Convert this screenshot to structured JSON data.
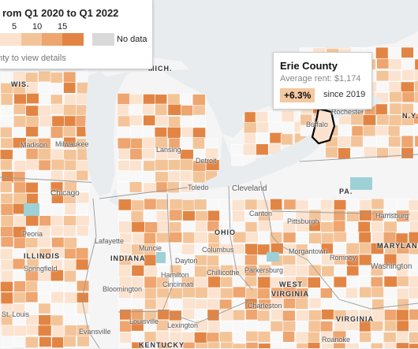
{
  "legend": {
    "title": "rom Q1 2020 to Q1 2022",
    "ticks": [
      "5",
      "10",
      "15"
    ],
    "colors": [
      "#fbe3cf",
      "#f4c499",
      "#eea56f",
      "#e28544"
    ],
    "no_data_label": "No data",
    "no_data_color": "#d9d9d9",
    "hint": "nty to view details"
  },
  "tooltip": {
    "county": "Erie County",
    "average_rent": "Average rent: $1,174",
    "change": "+6.3%",
    "since": "since 2019"
  },
  "colors": {
    "land": "#f5f5f5",
    "water": "#e9ecee",
    "lake": "#9ed1d6",
    "selected_outline": "#000000"
  },
  "cities": {
    "madison": "Madison",
    "milwaukee": "Milwaukee",
    "chicago": "Chicago",
    "peoria": "Peoria",
    "springfield": "Springfield",
    "st_louis": "St. Louis",
    "lansing": "Lansing",
    "detroit": "Detroit",
    "toledo": "Toledo",
    "cleveland": "Cleveland",
    "canton": "Canton",
    "pittsburgh": "Pittsburgh",
    "morgantown": "Morgantown",
    "romney": "Romney",
    "columbus": "Columbus",
    "dayton": "Dayton",
    "hamilton": "Hamilton",
    "cincinnati": "Cincinnati",
    "chillicothe": "Chillicothe",
    "parkersburg": "Parkersburg",
    "charleston": "Charleston",
    "lafayette": "Lafayette",
    "muncie": "Muncie",
    "bloomington": "Bloomington",
    "louisville": "Louisville",
    "lexington": "Lexington",
    "evansville": "Evansville",
    "harrisburg": "Harrisburg",
    "washington": "Washington",
    "roanoke": "Roanoke",
    "buffalo": "Buffalo",
    "rochester": "Rochester"
  },
  "states": {
    "wis": "WIS.",
    "mich": "MICH.",
    "illinois": "ILLINOIS",
    "indiana": "INDIANA",
    "ohio": "OHIO",
    "pa": "PA.",
    "ny": "N.Y.",
    "maryland": "MARYLAND",
    "west_virginia_1": "WEST",
    "west_virginia_2": "VIRGINIA",
    "virginia": "VIRGINIA",
    "kentucky": "KENTUCKY"
  }
}
